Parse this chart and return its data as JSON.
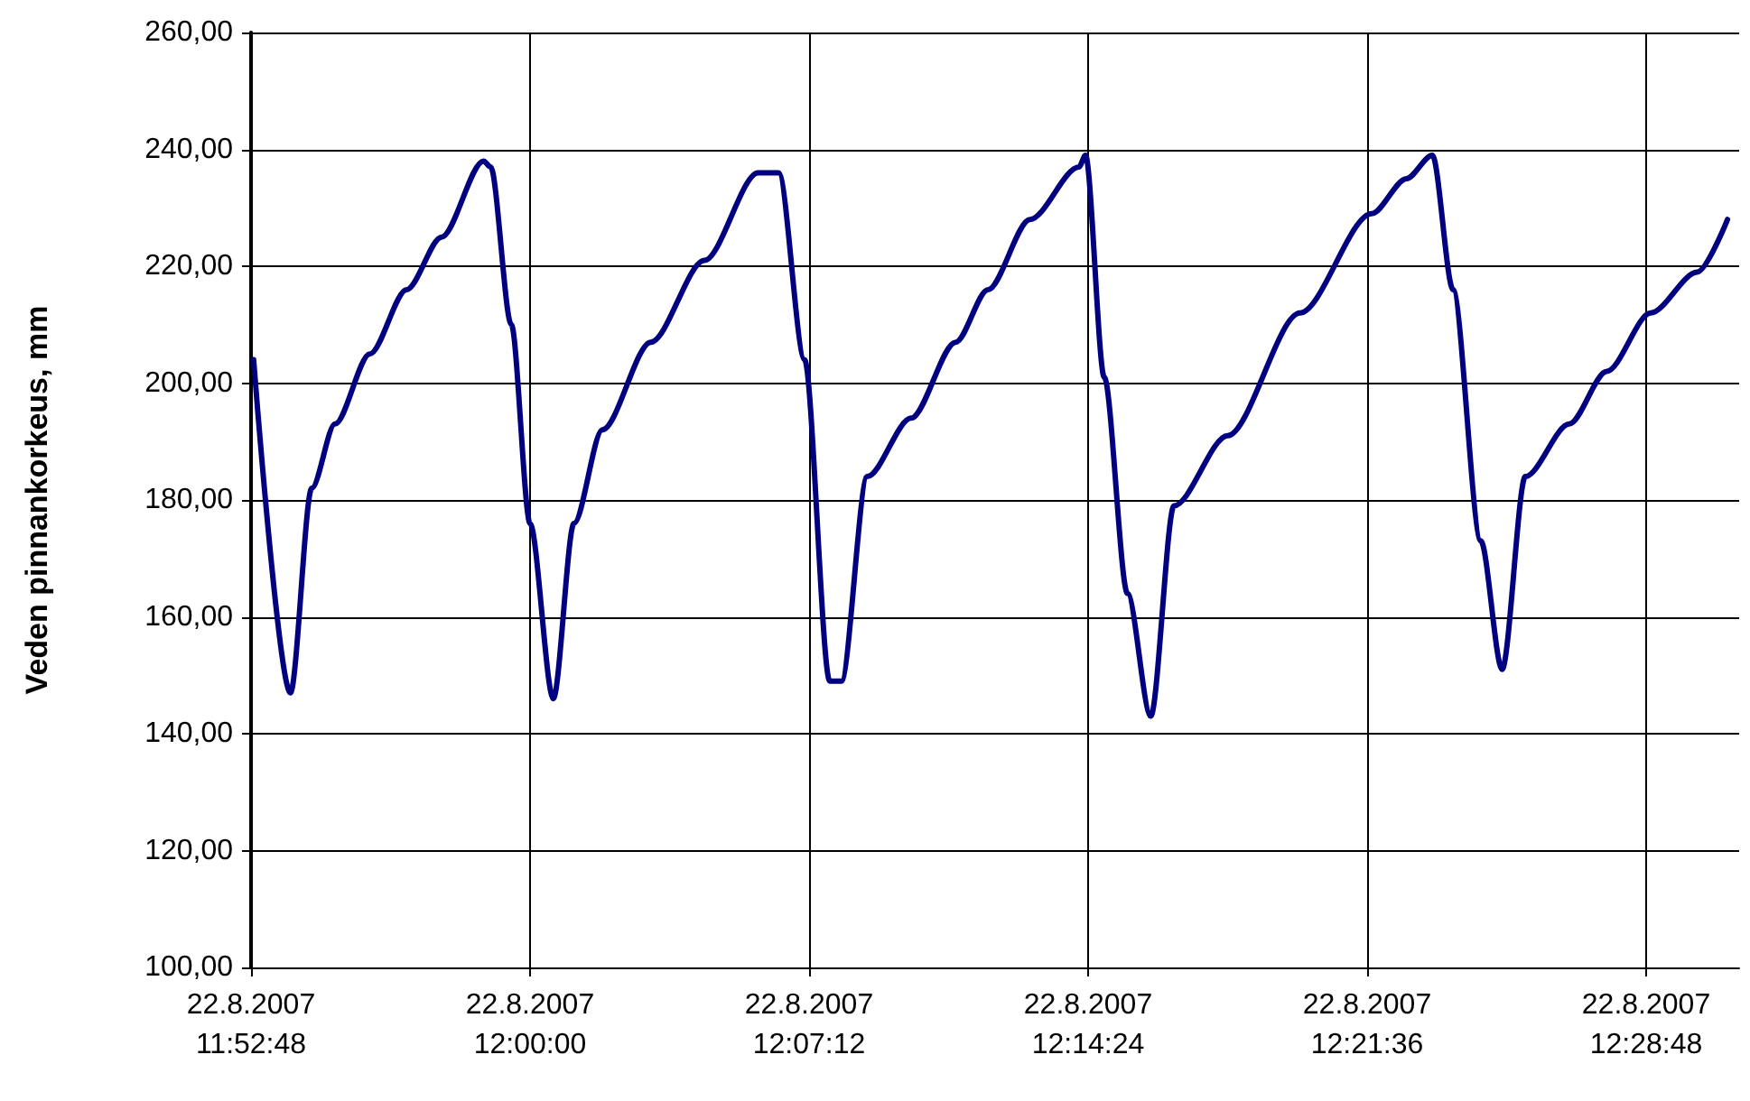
{
  "chart_data": {
    "type": "line",
    "ylabel": "Veden pinnankorkeus, mm",
    "x": [
      "2007-08-22T11:52:52",
      "2007-08-22T11:53:49",
      "2007-08-22T11:54:22",
      "2007-08-22T11:54:58",
      "2007-08-22T11:55:52",
      "2007-08-22T11:56:49",
      "2007-08-22T11:57:43",
      "2007-08-22T11:58:48",
      "2007-08-22T11:58:59",
      "2007-08-22T11:59:31",
      "2007-08-22T12:00:00",
      "2007-08-22T12:00:36",
      "2007-08-22T12:01:08",
      "2007-08-22T12:01:52",
      "2007-08-22T12:03:07",
      "2007-08-22T12:04:30",
      "2007-08-22T12:05:53",
      "2007-08-22T12:06:25",
      "2007-08-22T12:07:05",
      "2007-08-22T12:07:44",
      "2007-08-22T12:08:02",
      "2007-08-22T12:08:42",
      "2007-08-22T12:09:50",
      "2007-08-22T12:10:59",
      "2007-08-22T12:11:49",
      "2007-08-22T12:12:54",
      "2007-08-22T12:14:10",
      "2007-08-22T12:14:20",
      "2007-08-22T12:14:49",
      "2007-08-22T12:15:25",
      "2007-08-22T12:16:01",
      "2007-08-22T12:16:37",
      "2007-08-22T12:18:00",
      "2007-08-22T12:19:52",
      "2007-08-22T12:21:43",
      "2007-08-22T12:22:37",
      "2007-08-22T12:23:17",
      "2007-08-22T12:23:49",
      "2007-08-22T12:24:32",
      "2007-08-22T12:25:05",
      "2007-08-22T12:25:41",
      "2007-08-22T12:26:49",
      "2007-08-22T12:27:47",
      "2007-08-22T12:28:55",
      "2007-08-22T12:30:07",
      "2007-08-22T12:30:54"
    ],
    "series": [
      {
        "color": "#000080",
        "values": [
          204,
          147,
          182,
          193,
          205,
          216,
          225,
          238,
          237,
          210,
          176,
          146,
          176,
          192,
          207,
          221,
          236,
          236,
          204,
          149,
          149,
          184,
          194,
          207,
          216,
          228,
          237,
          239,
          201,
          164,
          143,
          179,
          191,
          212,
          229,
          235,
          239,
          216,
          173,
          151,
          184,
          193,
          202,
          212,
          219,
          228
        ]
      }
    ],
    "xlim": [
      "2007-08-22T11:52:48",
      "2007-08-22T12:31:12"
    ],
    "xticks": [
      {
        "value": "2007-08-22T11:52:48",
        "label": "22.8.2007\n11:52:48"
      },
      {
        "value": "2007-08-22T12:00:00",
        "label": "22.8.2007\n12:00:00"
      },
      {
        "value": "2007-08-22T12:07:12",
        "label": "22.8.2007\n12:07:12"
      },
      {
        "value": "2007-08-22T12:14:24",
        "label": "22.8.2007\n12:14:24"
      },
      {
        "value": "2007-08-22T12:21:36",
        "label": "22.8.2007\n12:21:36"
      },
      {
        "value": "2007-08-22T12:28:48",
        "label": "22.8.2007\n12:28:48"
      }
    ],
    "ylim": [
      100,
      260
    ],
    "yticks": [
      {
        "value": 100,
        "label": "100,00"
      },
      {
        "value": 120,
        "label": "120,00"
      },
      {
        "value": 140,
        "label": "140,00"
      },
      {
        "value": 160,
        "label": "160,00"
      },
      {
        "value": 180,
        "label": "180,00"
      },
      {
        "value": 200,
        "label": "200,00"
      },
      {
        "value": 220,
        "label": "220,00"
      },
      {
        "value": 240,
        "label": "240,00"
      },
      {
        "value": 260,
        "label": "260,00"
      }
    ],
    "grid": true,
    "marker": "none",
    "line_style": "solid"
  }
}
